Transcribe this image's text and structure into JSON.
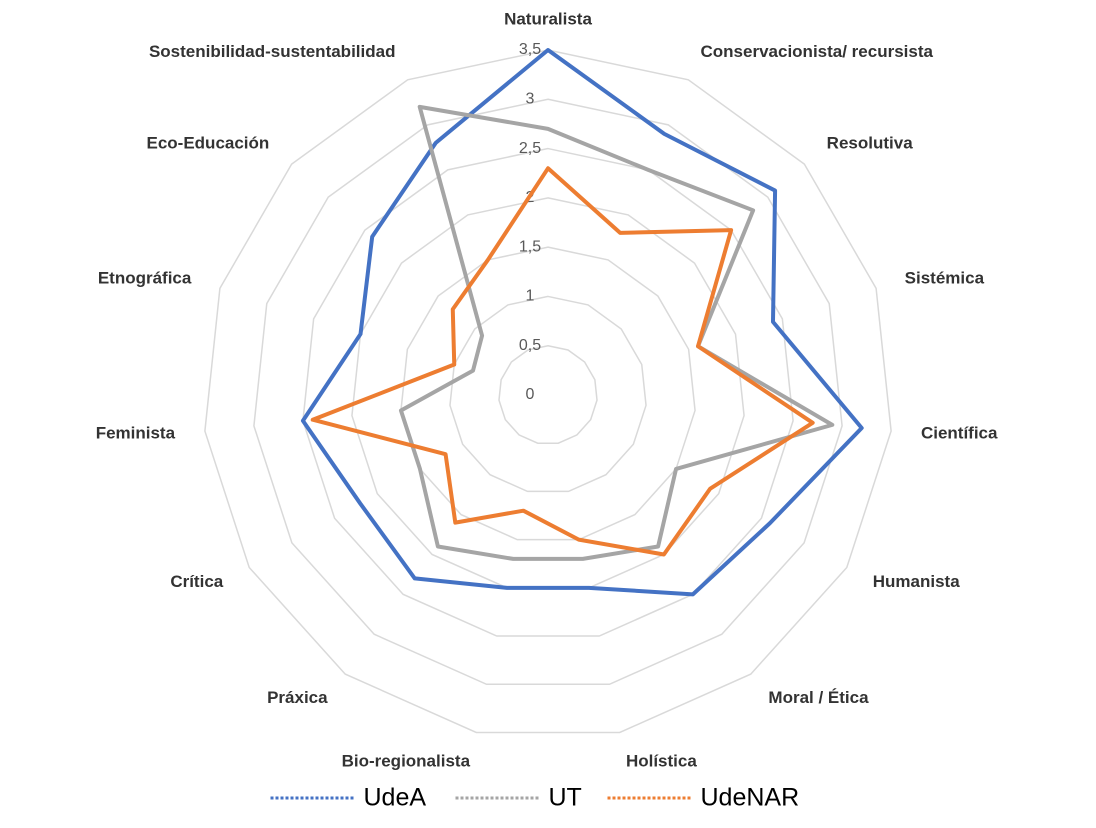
{
  "chart_data": {
    "type": "radar",
    "categories": [
      "Naturalista",
      "Conservacionista/ recursista",
      "Resolutiva",
      "Sistémica",
      "Científica",
      "Humanista",
      "Moral / Ética",
      "Holística",
      "Bio-regionalista",
      "Práxica",
      "Crítica",
      "Feminista",
      "Etnográfica",
      "Eco-Educación",
      "Sostenibilidad-sustentabilidad"
    ],
    "rlim": [
      0,
      3.5
    ],
    "ticks": [
      "0",
      "0,5",
      "1",
      "1,5",
      "2",
      "2,5",
      "3",
      "3,5"
    ],
    "tick_values": [
      0,
      0.5,
      1,
      1.5,
      2,
      2.5,
      3,
      3.5
    ],
    "grid": true,
    "legend_position": "bottom",
    "series": [
      {
        "name": "UdeA",
        "color": "#4472C4",
        "values": [
          3.5,
          2.9,
          3.1,
          2.4,
          3.2,
          2.6,
          2.5,
          2.0,
          2.0,
          2.3,
          2.2,
          2.5,
          2.0,
          2.4,
          2.8
        ]
      },
      {
        "name": "UT",
        "color": "#A5A5A5",
        "values": [
          2.7,
          2.5,
          2.8,
          1.6,
          2.9,
          1.5,
          1.9,
          1.7,
          1.7,
          1.9,
          1.5,
          1.5,
          0.8,
          0.9,
          3.2
        ]
      },
      {
        "name": "UdeNAR",
        "color": "#ED7D31",
        "values": [
          2.3,
          1.8,
          2.5,
          1.6,
          2.7,
          1.9,
          2.0,
          1.5,
          1.2,
          1.6,
          1.2,
          2.4,
          1.0,
          1.3,
          1.5
        ]
      }
    ]
  }
}
